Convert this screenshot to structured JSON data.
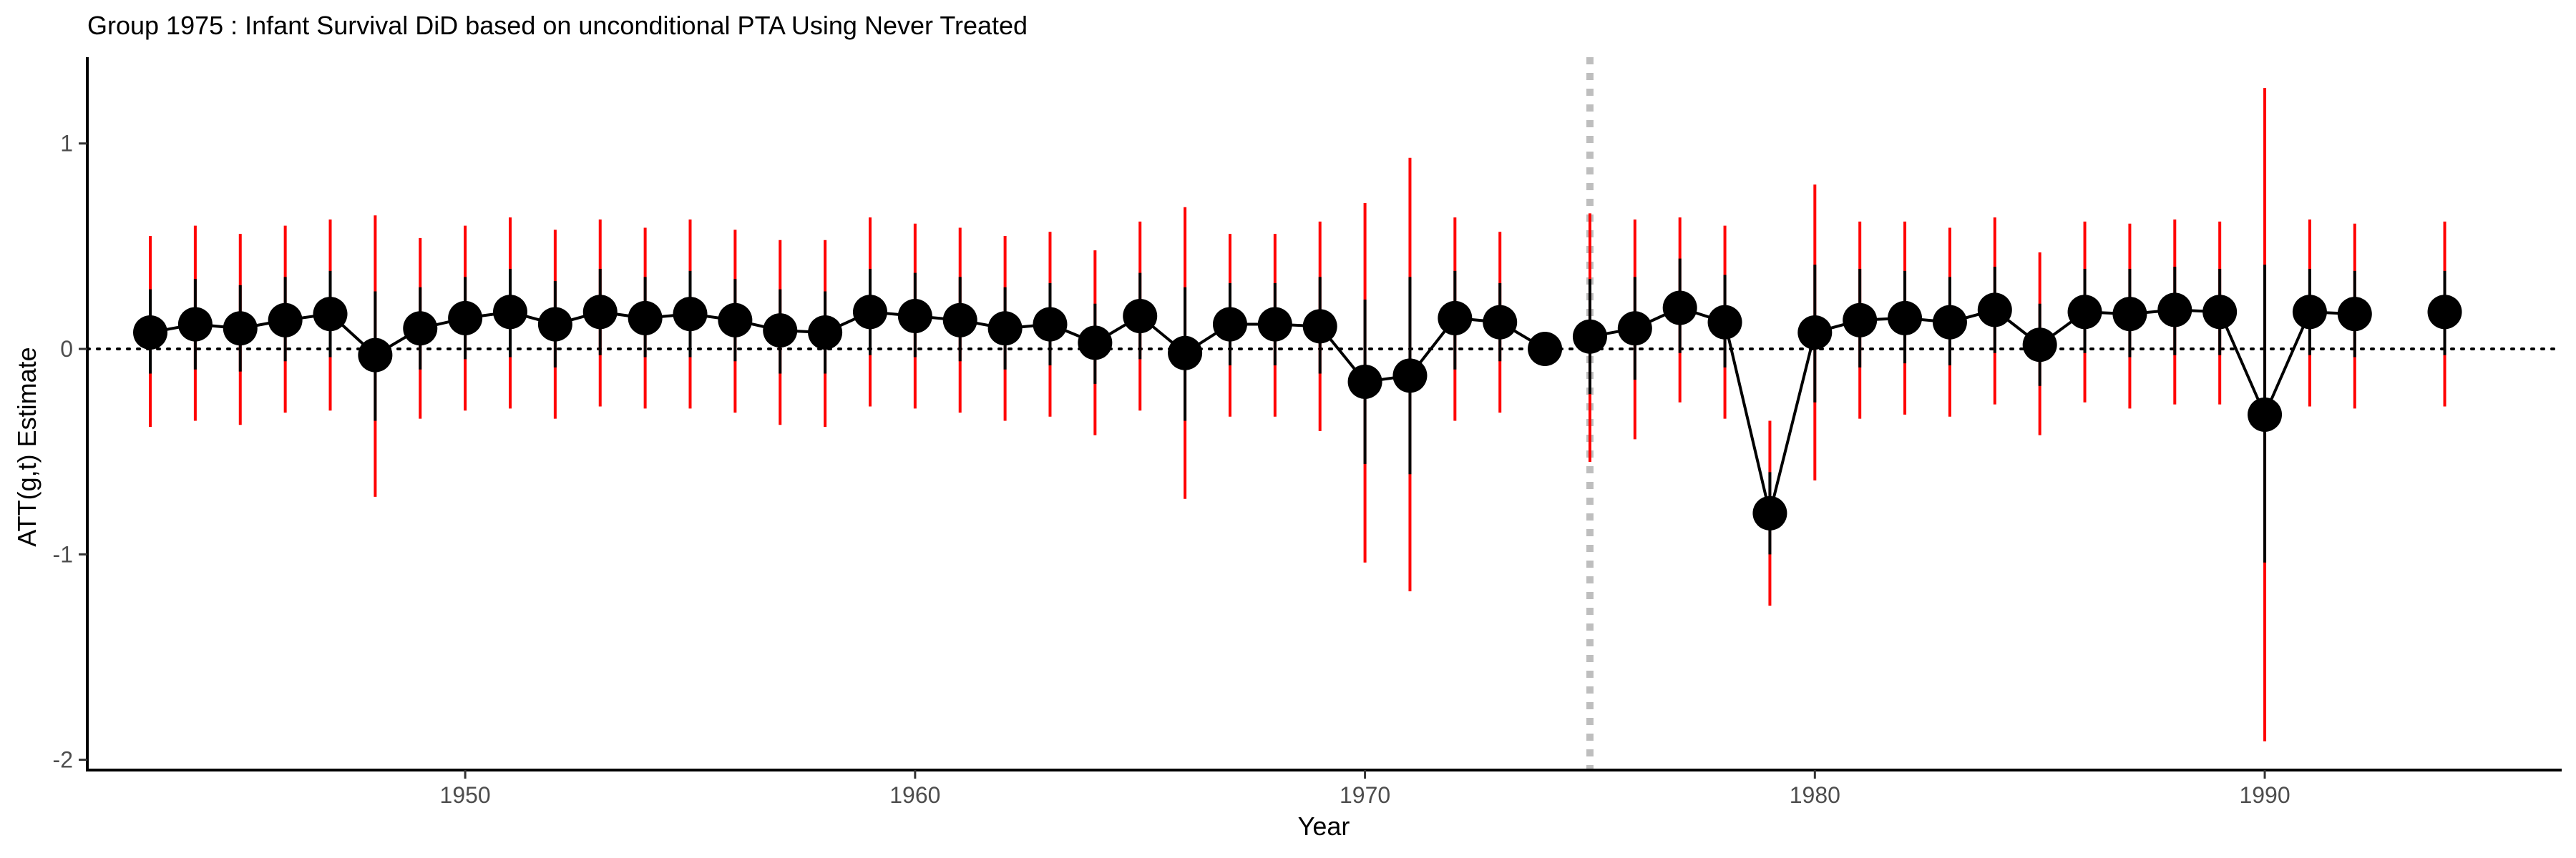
{
  "chart_data": {
    "type": "scatter",
    "title": "Group 1975 : Infant Survival DiD based on unconditional PTA Using Never Treated",
    "xlabel": "Year",
    "ylabel": "ATT(g,t) Estimate",
    "xlim": [
      1941.6,
      1996.6
    ],
    "ylim": [
      -2.05,
      1.42
    ],
    "x_ticks": [
      1950,
      1960,
      1970,
      1980,
      1990
    ],
    "y_ticks": [
      1,
      0,
      -1,
      -2
    ],
    "grid": false,
    "legend": "none",
    "reference_lines": {
      "y_zero": 0,
      "treatment_year": 1975
    },
    "colors": {
      "point": "#000000",
      "line": "#000000",
      "ci_outer": "#ff0000",
      "ci_inner": "#000000",
      "reference_vline": "#bebebe",
      "zero_line": "#000000"
    },
    "series": [
      {
        "x": [
          1943,
          1944,
          1945,
          1946,
          1947,
          1948,
          1949,
          1950,
          1951,
          1952,
          1953,
          1954,
          1955,
          1956,
          1957,
          1958,
          1959,
          1960,
          1961,
          1962,
          1963,
          1964,
          1965,
          1966,
          1967,
          1968,
          1969,
          1970,
          1971,
          1972,
          1973,
          1974
        ],
        "y": [
          0.08,
          0.12,
          0.1,
          0.14,
          0.17,
          -0.03,
          0.1,
          0.15,
          0.18,
          0.12,
          0.18,
          0.15,
          0.17,
          0.14,
          0.09,
          0.08,
          0.18,
          0.16,
          0.14,
          0.1,
          0.12,
          0.03,
          0.16,
          -0.02,
          0.12,
          0.12,
          0.11,
          -0.16,
          -0.13,
          0.15,
          0.13,
          0.0
        ],
        "ci_lower": [
          -0.38,
          -0.35,
          -0.37,
          -0.31,
          -0.3,
          -0.72,
          -0.34,
          -0.3,
          -0.29,
          -0.34,
          -0.28,
          -0.29,
          -0.29,
          -0.31,
          -0.37,
          -0.38,
          -0.28,
          -0.29,
          -0.31,
          -0.35,
          -0.33,
          -0.42,
          -0.3,
          -0.73,
          -0.33,
          -0.33,
          -0.4,
          -1.04,
          -1.18,
          -0.35,
          -0.31,
          0.0
        ],
        "ci_upper": [
          0.55,
          0.6,
          0.56,
          0.6,
          0.63,
          0.65,
          0.54,
          0.6,
          0.64,
          0.58,
          0.63,
          0.59,
          0.63,
          0.58,
          0.53,
          0.53,
          0.64,
          0.61,
          0.59,
          0.55,
          0.57,
          0.48,
          0.62,
          0.69,
          0.56,
          0.56,
          0.62,
          0.71,
          0.93,
          0.64,
          0.57,
          0.0
        ],
        "ci_inner_lower": [
          -0.12,
          -0.1,
          -0.11,
          -0.06,
          -0.04,
          -0.35,
          -0.1,
          -0.05,
          -0.04,
          -0.09,
          -0.03,
          -0.04,
          -0.04,
          -0.06,
          -0.12,
          -0.12,
          -0.03,
          -0.04,
          -0.06,
          -0.1,
          -0.08,
          -0.17,
          -0.05,
          -0.35,
          -0.08,
          -0.08,
          -0.12,
          -0.56,
          -0.61,
          -0.1,
          -0.06,
          0.0
        ],
        "ci_inner_upper": [
          0.29,
          0.34,
          0.31,
          0.35,
          0.38,
          0.28,
          0.3,
          0.35,
          0.39,
          0.33,
          0.39,
          0.35,
          0.38,
          0.34,
          0.29,
          0.28,
          0.39,
          0.37,
          0.35,
          0.3,
          0.32,
          0.22,
          0.37,
          0.3,
          0.32,
          0.32,
          0.35,
          0.24,
          0.35,
          0.38,
          0.32,
          0.0
        ]
      },
      {
        "x": [
          1975,
          1976,
          1977,
          1978,
          1979,
          1980,
          1981,
          1982,
          1983,
          1984,
          1985,
          1986,
          1987,
          1988,
          1989,
          1990,
          1991,
          1992
        ],
        "y": [
          0.06,
          0.1,
          0.2,
          0.13,
          -0.8,
          0.08,
          0.14,
          0.15,
          0.13,
          0.19,
          0.02,
          0.18,
          0.17,
          0.19,
          0.18,
          -0.32,
          0.18,
          0.17
        ],
        "ci_lower": [
          -0.55,
          -0.44,
          -0.26,
          -0.34,
          -1.25,
          -0.64,
          -0.34,
          -0.32,
          -0.33,
          -0.27,
          -0.42,
          -0.26,
          -0.29,
          -0.27,
          -0.27,
          -1.91,
          -0.28,
          -0.29
        ],
        "ci_upper": [
          0.66,
          0.63,
          0.64,
          0.6,
          -0.35,
          0.8,
          0.62,
          0.62,
          0.59,
          0.64,
          0.47,
          0.62,
          0.61,
          0.63,
          0.62,
          1.27,
          0.63,
          0.61
        ],
        "ci_inner_lower": [
          -0.22,
          -0.15,
          -0.02,
          -0.09,
          -1.0,
          -0.26,
          -0.09,
          -0.07,
          -0.08,
          -0.02,
          -0.18,
          -0.02,
          -0.04,
          -0.03,
          -0.03,
          -1.04,
          -0.03,
          -0.04
        ],
        "ci_inner_upper": [
          0.34,
          0.35,
          0.44,
          0.36,
          -0.6,
          0.41,
          0.39,
          0.38,
          0.35,
          0.4,
          0.22,
          0.39,
          0.39,
          0.4,
          0.39,
          0.41,
          0.39,
          0.38
        ]
      },
      {
        "x": [
          1994
        ],
        "y": [
          0.18
        ],
        "ci_lower": [
          -0.28
        ],
        "ci_upper": [
          0.62
        ],
        "ci_inner_lower": [
          -0.03
        ],
        "ci_inner_upper": [
          0.38
        ]
      }
    ]
  }
}
